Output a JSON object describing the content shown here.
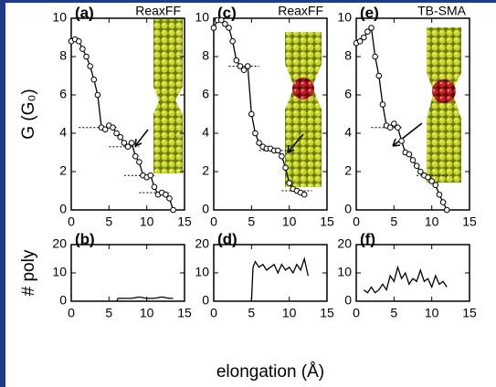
{
  "chart_data": [
    {
      "type": "line",
      "panel_label": "(a)",
      "title": "ReaxFF",
      "ylabel": "G (G₀)",
      "markers": true,
      "color": "#000000",
      "x": [
        0,
        0.5,
        1,
        1.5,
        2,
        2.5,
        3,
        3.5,
        4,
        4.5,
        5,
        5.5,
        6,
        6.5,
        7,
        7.5,
        8,
        8.5,
        9,
        9.5,
        10,
        10.5,
        11,
        11.5,
        12,
        12.5,
        13,
        13.5
      ],
      "values": [
        8.8,
        8.9,
        8.8,
        8.4,
        8.0,
        7.5,
        6.8,
        6.0,
        4.3,
        4.2,
        4.4,
        4.3,
        4.0,
        3.8,
        3.5,
        3.3,
        3.5,
        2.8,
        2.5,
        1.8,
        1.7,
        1.8,
        1.2,
        0.8,
        0.9,
        0.8,
        0.6,
        0.0
      ],
      "plateaus": [
        [
          1,
          6,
          4.3
        ],
        [
          5,
          9,
          3.3
        ],
        [
          7,
          11,
          1.8
        ],
        [
          9,
          13,
          0.9
        ]
      ],
      "xlim": [
        0,
        15
      ],
      "xticks": [
        0,
        5,
        10,
        15
      ],
      "ylim": [
        0,
        10
      ],
      "yticks": [
        0,
        2,
        4,
        6,
        8,
        10
      ]
    },
    {
      "type": "line",
      "panel_label": "(c)",
      "title": "ReaxFF",
      "markers": true,
      "color": "#000000",
      "x": [
        0,
        0.5,
        1,
        1.5,
        2,
        2.5,
        3,
        3.5,
        4,
        4.5,
        5,
        5.5,
        6,
        6.5,
        7,
        7.5,
        8,
        8.5,
        9,
        9.5,
        10,
        10.5,
        11,
        11.5,
        12
      ],
      "values": [
        9.5,
        9.9,
        9.9,
        9.7,
        9.5,
        8.8,
        7.8,
        7.5,
        7.3,
        7.5,
        5.0,
        4.0,
        3.5,
        3.3,
        3.2,
        3.2,
        3.1,
        3.1,
        2.8,
        2.2,
        1.4,
        1.1,
        1.0,
        0.9,
        0.8
      ],
      "plateaus": [
        [
          2,
          6,
          7.5
        ],
        [
          6,
          10,
          3.1
        ],
        [
          9,
          13,
          1.0
        ]
      ],
      "xlim": [
        0,
        15
      ],
      "xticks": [
        0,
        5,
        10,
        15
      ],
      "ylim": [
        0,
        10
      ],
      "yticks": [
        0,
        2,
        4,
        6,
        8,
        10
      ]
    },
    {
      "type": "line",
      "panel_label": "(e)",
      "title": "TB-SMA",
      "markers": true,
      "color": "#000000",
      "x": [
        0,
        0.5,
        1,
        1.5,
        2,
        2.5,
        3,
        3.5,
        4,
        4.5,
        5,
        5.5,
        6,
        6.5,
        7,
        7.5,
        8,
        8.5,
        9,
        9.5,
        10,
        10.5,
        11,
        11.5,
        12
      ],
      "values": [
        8.7,
        8.8,
        9.0,
        9.3,
        9.5,
        8.0,
        7.0,
        5.5,
        4.4,
        4.3,
        4.5,
        4.3,
        3.6,
        3.0,
        2.9,
        2.6,
        2.3,
        2.0,
        1.8,
        1.7,
        1.5,
        1.3,
        0.8,
        0.4,
        0.0
      ],
      "plateaus": [
        [
          2,
          6,
          4.3
        ],
        [
          8,
          12,
          1.8
        ]
      ],
      "xlim": [
        0,
        15
      ],
      "xticks": [
        0,
        5,
        10,
        15
      ],
      "ylim": [
        0,
        10
      ],
      "yticks": [
        0,
        2,
        4,
        6,
        8,
        10
      ]
    },
    {
      "type": "line",
      "panel_label": "(b)",
      "ylabel": "# poly",
      "markers": false,
      "color": "#000000",
      "x": [
        6,
        6.2,
        7,
        8,
        9,
        10,
        11,
        12,
        13,
        13.5
      ],
      "values": [
        0,
        1,
        1,
        1,
        1.5,
        1,
        1,
        1.5,
        1,
        1
      ],
      "xlim": [
        0,
        15
      ],
      "xticks": [
        0,
        5,
        10,
        15
      ],
      "ylim": [
        0,
        20
      ],
      "yticks": [
        0,
        10,
        20
      ]
    },
    {
      "type": "line",
      "panel_label": "(d)",
      "xlabel": "elongation (Å)",
      "markers": false,
      "color": "#000000",
      "x": [
        5,
        5.2,
        5.5,
        6,
        6.5,
        7,
        7.5,
        8,
        8.5,
        9,
        9.5,
        10,
        10.5,
        11,
        11.5,
        12,
        12.5
      ],
      "values": [
        0,
        12,
        14,
        12,
        13,
        11,
        12,
        13,
        10,
        13,
        11,
        12,
        10,
        13,
        11,
        15,
        9
      ],
      "xlim": [
        0,
        15
      ],
      "xticks": [
        0,
        5,
        10,
        15
      ],
      "ylim": [
        0,
        20
      ],
      "yticks": [
        0,
        10,
        20
      ]
    },
    {
      "type": "line",
      "panel_label": "(f)",
      "markers": false,
      "color": "#000000",
      "x": [
        1,
        1.5,
        2,
        2.5,
        3,
        3.5,
        4,
        4.5,
        5,
        5.5,
        6,
        6.5,
        7,
        7.5,
        8,
        8.5,
        9,
        9.5,
        10,
        10.5,
        11,
        11.5,
        12
      ],
      "values": [
        4,
        3,
        5,
        3,
        4,
        6,
        4,
        9,
        7,
        12,
        8,
        10,
        6,
        8,
        7,
        11,
        7,
        8,
        5,
        9,
        6,
        7,
        5
      ],
      "xlim": [
        0,
        15
      ],
      "xticks": [
        0,
        5,
        10,
        15
      ],
      "ylim": [
        0,
        20
      ],
      "yticks": [
        0,
        10,
        20
      ]
    }
  ]
}
